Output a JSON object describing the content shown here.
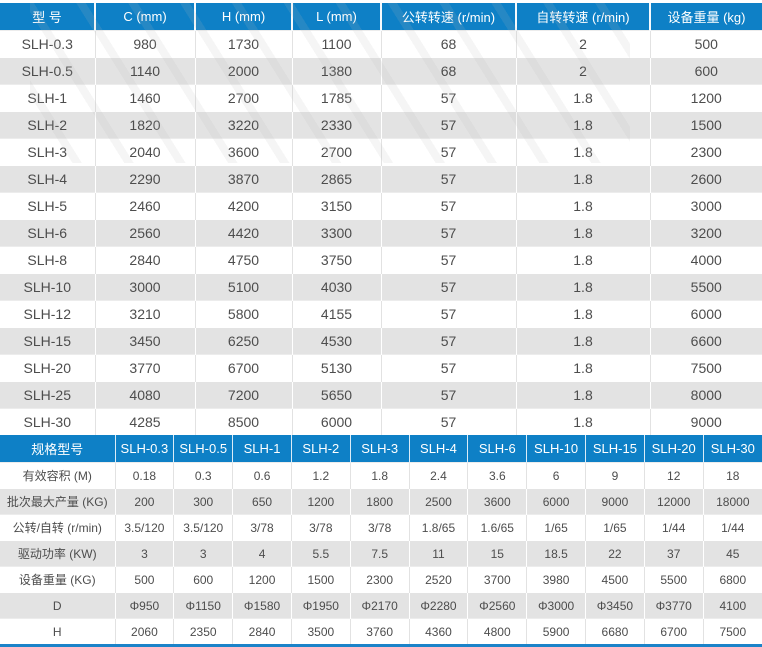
{
  "table1": {
    "headers": [
      "型 号",
      "C (mm)",
      "H (mm)",
      "L (mm)",
      "公转转速 (r/min)",
      "自转转速 (r/min)",
      "设备重量 (kg)"
    ],
    "rows": [
      [
        "SLH-0.3",
        "980",
        "1730",
        "1100",
        "68",
        "2",
        "500"
      ],
      [
        "SLH-0.5",
        "1140",
        "2000",
        "1380",
        "68",
        "2",
        "600"
      ],
      [
        "SLH-1",
        "1460",
        "2700",
        "1785",
        "57",
        "1.8",
        "1200"
      ],
      [
        "SLH-2",
        "1820",
        "3220",
        "2330",
        "57",
        "1.8",
        "1500"
      ],
      [
        "SLH-3",
        "2040",
        "3600",
        "2700",
        "57",
        "1.8",
        "2300"
      ],
      [
        "SLH-4",
        "2290",
        "3870",
        "2865",
        "57",
        "1.8",
        "2600"
      ],
      [
        "SLH-5",
        "2460",
        "4200",
        "3150",
        "57",
        "1.8",
        "3000"
      ],
      [
        "SLH-6",
        "2560",
        "4420",
        "3300",
        "57",
        "1.8",
        "3200"
      ],
      [
        "SLH-8",
        "2840",
        "4750",
        "3750",
        "57",
        "1.8",
        "4000"
      ],
      [
        "SLH-10",
        "3000",
        "5100",
        "4030",
        "57",
        "1.8",
        "5500"
      ],
      [
        "SLH-12",
        "3210",
        "5800",
        "4155",
        "57",
        "1.8",
        "6000"
      ],
      [
        "SLH-15",
        "3450",
        "6250",
        "4530",
        "57",
        "1.8",
        "6600"
      ],
      [
        "SLH-20",
        "3770",
        "6700",
        "5130",
        "57",
        "1.8",
        "7500"
      ],
      [
        "SLH-25",
        "4080",
        "7200",
        "5650",
        "57",
        "1.8",
        "8000"
      ],
      [
        "SLH-30",
        "4285",
        "8500",
        "6000",
        "57",
        "1.8",
        "9000"
      ]
    ]
  },
  "table2": {
    "header_label": "规格型号",
    "model_headers": [
      "SLH-0.3",
      "SLH-0.5",
      "SLH-1",
      "SLH-2",
      "SLH-3",
      "SLH-4",
      "SLH-6",
      "SLH-10",
      "SLH-15",
      "SLH-20",
      "SLH-30"
    ],
    "rows": [
      {
        "label": "有效容积 (M)",
        "values": [
          "0.18",
          "0.3",
          "0.6",
          "1.2",
          "1.8",
          "2.4",
          "3.6",
          "6",
          "9",
          "12",
          "18"
        ]
      },
      {
        "label": "批次最大产量 (KG)",
        "values": [
          "200",
          "300",
          "650",
          "1200",
          "1800",
          "2500",
          "3600",
          "6000",
          "9000",
          "12000",
          "18000"
        ]
      },
      {
        "label": "公转/自转 (r/min)",
        "values": [
          "3.5/120",
          "3.5/120",
          "3/78",
          "3/78",
          "3/78",
          "1.8/65",
          "1.6/65",
          "1/65",
          "1/65",
          "1/44",
          "1/44"
        ]
      },
      {
        "label": "驱动功率 (KW)",
        "values": [
          "3",
          "3",
          "4",
          "5.5",
          "7.5",
          "11",
          "15",
          "18.5",
          "22",
          "37",
          "45"
        ]
      },
      {
        "label": "设备重量 (KG)",
        "values": [
          "500",
          "600",
          "1200",
          "1500",
          "2300",
          "2520",
          "3700",
          "3980",
          "4500",
          "5500",
          "6800"
        ]
      },
      {
        "label": "D",
        "values": [
          "Φ950",
          "Φ1150",
          "Φ1580",
          "Φ1950",
          "Φ2170",
          "Φ2280",
          "Φ2560",
          "Φ3000",
          "Φ3450",
          "Φ3770",
          "4100"
        ]
      },
      {
        "label": "H",
        "values": [
          "2060",
          "2350",
          "2840",
          "3500",
          "3760",
          "4360",
          "4800",
          "5900",
          "6680",
          "6700",
          "7500"
        ]
      }
    ]
  },
  "colors": {
    "header_blue": "#0e80c6",
    "row_stripe": "#e3e3e3",
    "text": "#4d4d4d",
    "bottom_rule": "#1b83c9"
  }
}
